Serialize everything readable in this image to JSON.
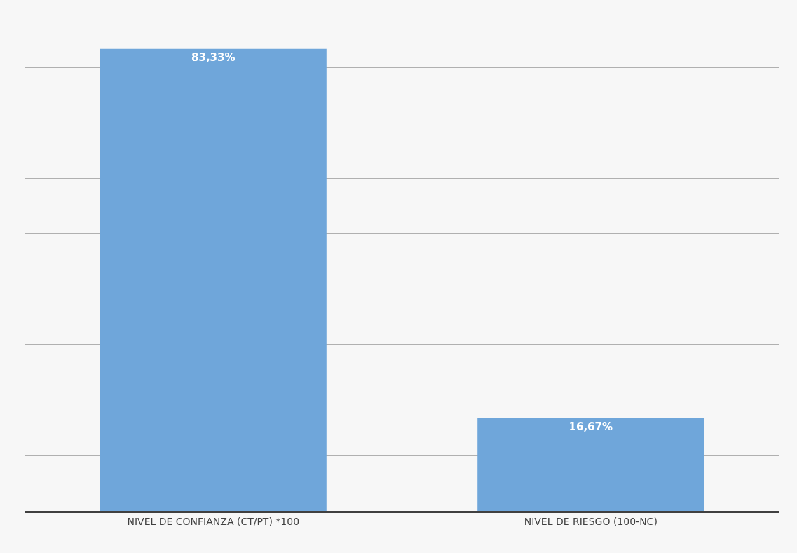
{
  "chart_data": {
    "type": "bar",
    "categories": [
      "NIVEL DE CONFIANZA (CT/PT) *100",
      "NIVEL DE RIESGO (100-NC)"
    ],
    "values": [
      83.33,
      16.67
    ],
    "value_labels": [
      "83,33%",
      "16,67%"
    ],
    "color": "#6fa6da",
    "tick_labels": "x",
    "grid": "y",
    "legend": false
  }
}
